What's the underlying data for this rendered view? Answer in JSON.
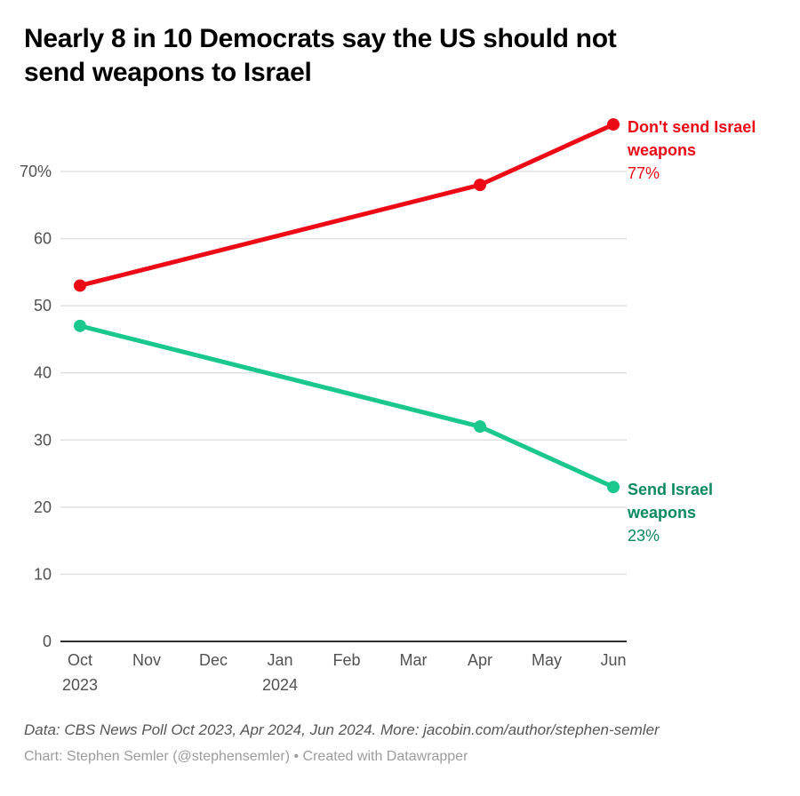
{
  "header": {
    "title_lines": [
      "Nearly 8 in 10 Democrats say the US should not",
      "send weapons to Israel"
    ]
  },
  "chart_data": {
    "type": "line",
    "title": "Nearly 8 in 10 Democrats say the US should not send weapons to Israel",
    "xlabel": "",
    "ylabel": "",
    "ylim": [
      0,
      80
    ],
    "grid": true,
    "legend_position": "end-of-line-labels",
    "x_ticks": [
      {
        "month": "Oct",
        "year": "2023"
      },
      {
        "month": "Nov",
        "year": ""
      },
      {
        "month": "Dec",
        "year": ""
      },
      {
        "month": "Jan",
        "year": "2024"
      },
      {
        "month": "Feb",
        "year": ""
      },
      {
        "month": "Mar",
        "year": ""
      },
      {
        "month": "Apr",
        "year": ""
      },
      {
        "month": "May",
        "year": ""
      },
      {
        "month": "Jun",
        "year": ""
      }
    ],
    "y_ticks": [
      {
        "value": 0,
        "label": "0"
      },
      {
        "value": 10,
        "label": "10"
      },
      {
        "value": 20,
        "label": "20"
      },
      {
        "value": 30,
        "label": "30"
      },
      {
        "value": 40,
        "label": "40"
      },
      {
        "value": 50,
        "label": "50"
      },
      {
        "value": 60,
        "label": "60"
      },
      {
        "value": 70,
        "label": "70%"
      }
    ],
    "series": [
      {
        "name": "Don't send Israel weapons",
        "color": "#ec0a16",
        "label_color": "#ec0a16",
        "label_lines": [
          "Don't send Israel",
          "weapons"
        ],
        "value_label": "77%",
        "points": [
          {
            "x": "Oct 2023",
            "x_index": 0,
            "value": 53
          },
          {
            "x": "Apr 2024",
            "x_index": 6,
            "value": 68
          },
          {
            "x": "Jun 2024",
            "x_index": 8,
            "value": 77
          }
        ]
      },
      {
        "name": "Send Israel weapons",
        "color": "#1ac88e",
        "label_color": "#0b8a5e",
        "label_lines": [
          "Send Israel",
          "weapons"
        ],
        "value_label": "23%",
        "points": [
          {
            "x": "Oct 2023",
            "x_index": 0,
            "value": 47
          },
          {
            "x": "Apr 2024",
            "x_index": 6,
            "value": 32
          },
          {
            "x": "Jun 2024",
            "x_index": 8,
            "value": 23
          }
        ]
      }
    ]
  },
  "footer": {
    "source_line": "Data: CBS News Poll Oct 2023, Apr 2024, Jun 2024. More: jacobin.com/author/stephen-semler",
    "byline": "Chart: Stephen Semler (@stephensemler) • Created with Datawrapper"
  }
}
